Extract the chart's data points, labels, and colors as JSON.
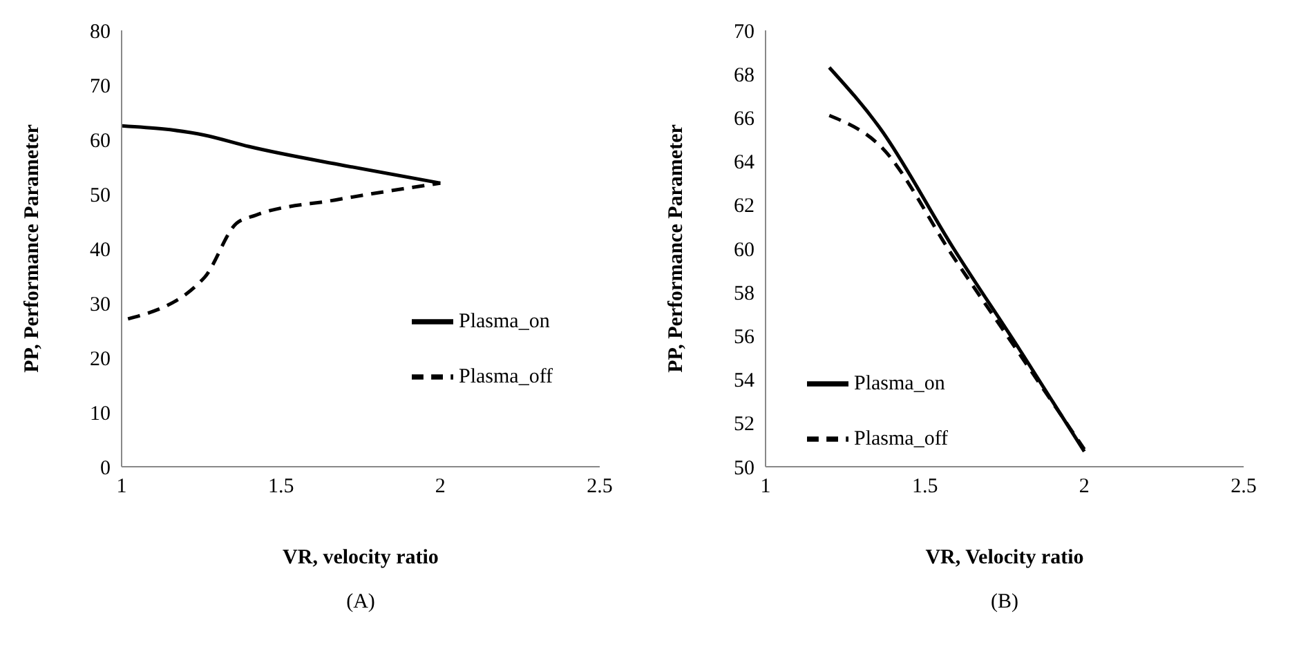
{
  "chart_data": [
    {
      "type": "line",
      "xlabel": "VR, velocity ratio",
      "ylabel": "PP, Performance Parameter",
      "xlim": [
        1,
        2.5
      ],
      "xticks": [
        1,
        1.5,
        2,
        2.5
      ],
      "ylim": [
        0,
        80
      ],
      "yticks": [
        0,
        10,
        20,
        30,
        40,
        50,
        60,
        70,
        80
      ],
      "grid": false,
      "legend": "right",
      "marker": "none",
      "annotations": [
        "(A)"
      ],
      "series": [
        {
          "name": "Plasma_on",
          "color": "#000000",
          "line_style": "solid",
          "x": [
            1,
            1.26,
            1.4,
            1.7,
            2
          ],
          "values": [
            62.5,
            60.8,
            58.7,
            55.2,
            52
          ]
        },
        {
          "name": "Plasma_off",
          "color": "#000000",
          "line_style": "dashed",
          "x": [
            1.02,
            1.26,
            1.36,
            1.42,
            1.67,
            2
          ],
          "values": [
            27.1,
            34.7,
            44.6,
            46.1,
            48.9,
            52
          ]
        }
      ]
    },
    {
      "type": "line",
      "xlabel": "VR, Velocity ratio",
      "ylabel": "PP, Performance Parameter",
      "xlim": [
        1,
        2.5
      ],
      "xticks": [
        1,
        1.5,
        2,
        2.5
      ],
      "ylim": [
        50,
        70
      ],
      "yticks": [
        50,
        52,
        54,
        56,
        58,
        60,
        62,
        64,
        66,
        68,
        70
      ],
      "grid": false,
      "legend": "bottom left",
      "marker": "none",
      "annotations": [
        "(B)"
      ],
      "series": [
        {
          "name": "Plasma_on",
          "color": "#000000",
          "line_style": "solid",
          "x": [
            1.2,
            1.36,
            1.59,
            1.8,
            2
          ],
          "values": [
            68.3,
            65.5,
            60,
            55.3,
            50.7
          ]
        },
        {
          "name": "Plasma_off",
          "color": "#000000",
          "line_style": "dashed",
          "x": [
            1.2,
            1.36,
            1.59,
            1.8,
            2
          ],
          "values": [
            66.1,
            64.7,
            59.6,
            55.1,
            50.8
          ]
        }
      ]
    }
  ]
}
